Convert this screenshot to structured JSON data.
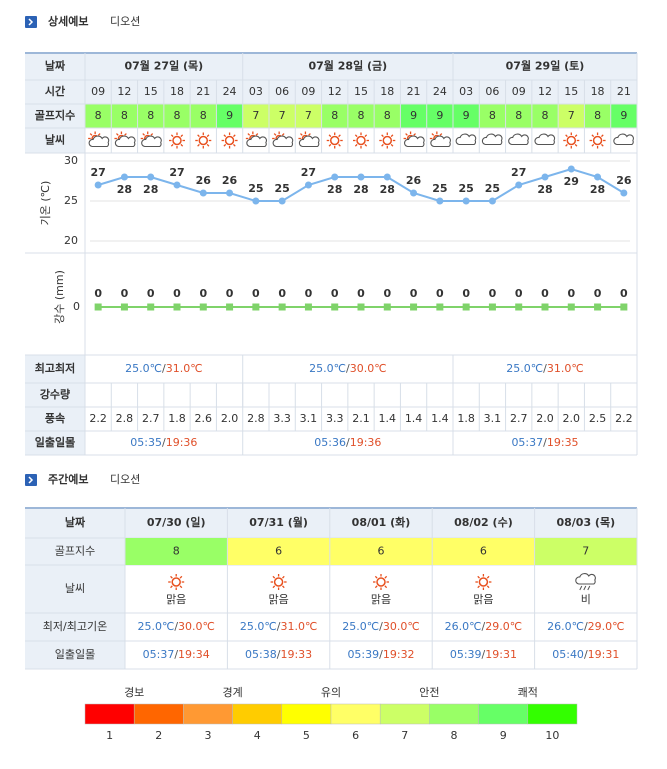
{
  "separator": "/",
  "detail": {
    "section_title": "상세예보",
    "location": "디오션",
    "row_labels": {
      "date": "날짜",
      "time": "시간",
      "golf": "골프지수",
      "weather": "날씨",
      "minmax": "최고최저",
      "rain": "강수량",
      "wind": "풍속",
      "sun": "일출일몰"
    },
    "days": [
      {
        "date": "07월 27일 (목)",
        "times": [
          "09",
          "12",
          "15",
          "18",
          "21",
          "24"
        ],
        "min": "25.0℃",
        "max": "31.0℃",
        "sunrise": "05:35",
        "sunset": "19:36"
      },
      {
        "date": "07월 28일 (금)",
        "times": [
          "03",
          "06",
          "09",
          "12",
          "15",
          "18",
          "21",
          "24"
        ],
        "min": "25.0℃",
        "max": "30.0℃",
        "sunrise": "05:36",
        "sunset": "19:36"
      },
      {
        "date": "07월 29일 (토)",
        "times": [
          "03",
          "06",
          "09",
          "12",
          "15",
          "18",
          "21"
        ],
        "min": "25.0℃",
        "max": "31.0℃",
        "sunrise": "05:37",
        "sunset": "19:35"
      }
    ],
    "golf": [
      8,
      8,
      8,
      8,
      8,
      9,
      7,
      7,
      7,
      8,
      8,
      8,
      9,
      9,
      9,
      8,
      8,
      8,
      7,
      8,
      9
    ],
    "temperature": {
      "type": "line",
      "axis_label": "기온 (℃)",
      "ylim": [
        20,
        30
      ],
      "yticks": [
        20,
        25,
        30
      ],
      "color": "#7cb5ec",
      "values": [
        27,
        28,
        28,
        27,
        26,
        26,
        25,
        25,
        27,
        28,
        28,
        28,
        26,
        25,
        25,
        25,
        27,
        28,
        29,
        28,
        26
      ]
    },
    "precipitation": {
      "type": "line",
      "axis_label": "강수 (mm)",
      "yticks": [
        0
      ],
      "color": "#7fd36a",
      "values": [
        0,
        0,
        0,
        0,
        0,
        0,
        0,
        0,
        0,
        0,
        0,
        0,
        0,
        0,
        0,
        0,
        0,
        0,
        0,
        0,
        0
      ]
    },
    "wind": [
      "2.2",
      "2.8",
      "2.7",
      "1.8",
      "2.6",
      "2.0",
      "2.8",
      "3.3",
      "3.1",
      "3.3",
      "2.1",
      "1.4",
      "1.4",
      "1.4",
      "1.8",
      "3.1",
      "2.7",
      "2.0",
      "2.0",
      "2.5",
      "2.2"
    ]
  },
  "weekly": {
    "section_title": "주간예보",
    "location": "디오션",
    "row_labels": {
      "date": "날짜",
      "golf": "골프지수",
      "weather": "날씨",
      "temp": "최저/최고기온",
      "sun": "일출일몰"
    },
    "days": [
      {
        "date": "07/30 (일)",
        "golf": 8,
        "weather": "맑음",
        "low": "25.0℃",
        "high": "30.0℃",
        "sunrise": "05:37",
        "sunset": "19:34"
      },
      {
        "date": "07/31 (월)",
        "golf": 6,
        "weather": "맑음",
        "low": "25.0℃",
        "high": "31.0℃",
        "sunrise": "05:38",
        "sunset": "19:33"
      },
      {
        "date": "08/01 (화)",
        "golf": 6,
        "weather": "맑음",
        "low": "25.0℃",
        "high": "30.0℃",
        "sunrise": "05:39",
        "sunset": "19:32"
      },
      {
        "date": "08/02 (수)",
        "golf": 6,
        "weather": "맑음",
        "low": "26.0℃",
        "high": "29.0℃",
        "sunrise": "05:39",
        "sunset": "19:31"
      },
      {
        "date": "08/03 (목)",
        "golf": 7,
        "weather": "비",
        "low": "26.0℃",
        "high": "29.0℃",
        "sunrise": "05:40",
        "sunset": "19:31"
      }
    ]
  },
  "legend": {
    "levels": [
      {
        "value": 1,
        "color": "#ff0000"
      },
      {
        "value": 2,
        "color": "#ff6600"
      },
      {
        "value": 3,
        "color": "#ff9933"
      },
      {
        "value": 4,
        "color": "#ffcc00"
      },
      {
        "value": 5,
        "color": "#ffff00"
      },
      {
        "value": 6,
        "color": "#ffff66"
      },
      {
        "value": 7,
        "color": "#ccff66"
      },
      {
        "value": 8,
        "color": "#99ff66"
      },
      {
        "value": 9,
        "color": "#66ff66"
      },
      {
        "value": 10,
        "color": "#33ff00"
      }
    ],
    "labels": [
      "경보",
      "경계",
      "유의",
      "안전",
      "쾌적"
    ]
  }
}
